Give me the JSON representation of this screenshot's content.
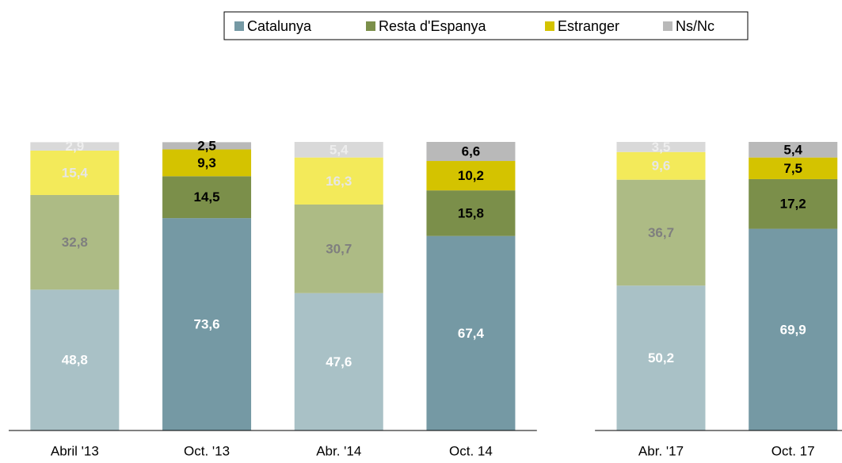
{
  "chart_data": {
    "type": "stacked_bar",
    "categories": [
      "Abril '13",
      "Oct. '13",
      "Abr. '14",
      "Oct. 14",
      null,
      "Abr. '17",
      "Oct. 17"
    ],
    "faded": [
      true,
      false,
      true,
      false,
      null,
      true,
      false
    ],
    "series": [
      {
        "name": "Catalunya",
        "color": "#7599a4",
        "faded_color": "#a9c1c6",
        "label_color": "#ffffff",
        "faded_label_color": "#ffffff",
        "values": [
          48.8,
          73.6,
          47.6,
          67.4,
          null,
          50.2,
          69.9
        ],
        "value_labels": [
          "48,8",
          "73,6",
          "47,6",
          "67,4",
          null,
          "50,2",
          "69,9"
        ]
      },
      {
        "name": "Resta d'Espanya",
        "color": "#7b8f4a",
        "faded_color": "#adbb85",
        "label_color": "#000000",
        "faded_label_color": "#7f7f7f",
        "values": [
          32.8,
          14.5,
          30.7,
          15.8,
          null,
          36.7,
          17.2
        ],
        "value_labels": [
          "32,8",
          "14,5",
          "30,7",
          "15,8",
          null,
          "36,7",
          "17,2"
        ]
      },
      {
        "name": "Estranger",
        "color": "#d4c300",
        "faded_color": "#f3ea5a",
        "label_color": "#000000",
        "faded_label_color": "#e6e6e6",
        "values": [
          15.4,
          9.3,
          16.3,
          10.2,
          null,
          9.6,
          7.5
        ],
        "value_labels": [
          "15,4",
          "9,3",
          "16,3",
          "10,2",
          null,
          "9,6",
          "7,5"
        ]
      },
      {
        "name": "Ns/Nc",
        "color": "#b9b9b9",
        "faded_color": "#d9d9d9",
        "label_color": "#000000",
        "faded_label_color": "#eeeeee",
        "values": [
          2.9,
          2.5,
          5.4,
          6.6,
          null,
          3.5,
          5.4
        ],
        "value_labels": [
          "2,9",
          "2,5",
          "5,4",
          "6,6",
          null,
          "3,5",
          "5,4"
        ]
      }
    ],
    "ylim": [
      0,
      100
    ],
    "legend": "top"
  }
}
